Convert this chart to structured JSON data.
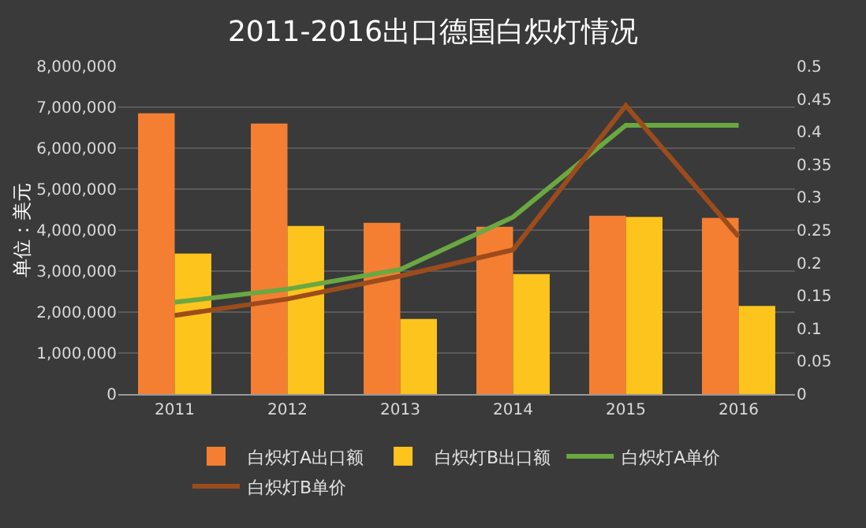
{
  "chart_data": {
    "type": "bar",
    "title": "2011-2016出口德国白炽灯情况",
    "ylabel": "单位：美元",
    "categories": [
      "2011",
      "2012",
      "2013",
      "2014",
      "2015",
      "2016"
    ],
    "series": [
      {
        "name": "白炽灯A出口额",
        "color": "#f47f32",
        "values": [
          6850000,
          6600000,
          4180000,
          4080000,
          4350000,
          4300000
        ]
      },
      {
        "name": "白炽灯B出口额",
        "color": "#fcc41c",
        "values": [
          3430000,
          4100000,
          1830000,
          2930000,
          4320000,
          2150000
        ]
      },
      {
        "name": "白炽灯A单价",
        "type": "line",
        "axis": "y2",
        "color": "#6aa842",
        "values": [
          0.14,
          0.16,
          0.19,
          0.27,
          0.41,
          0.41
        ]
      },
      {
        "name": "白炽灯B单价",
        "type": "line",
        "axis": "y2",
        "color": "#9c4c1c",
        "values": [
          0.12,
          0.145,
          0.18,
          0.22,
          0.44,
          0.24
        ]
      }
    ],
    "ylim": [
      0,
      8000000
    ],
    "yticks": [
      {
        "value": 0,
        "label": "0"
      },
      {
        "value": 1000000,
        "label": "1,000,000"
      },
      {
        "value": 2000000,
        "label": "2,000,000"
      },
      {
        "value": 3000000,
        "label": "3,000,000"
      },
      {
        "value": 4000000,
        "label": "4,000,000"
      },
      {
        "value": 5000000,
        "label": "5,000,000"
      },
      {
        "value": 6000000,
        "label": "6,000,000"
      },
      {
        "value": 7000000,
        "label": "7,000,000"
      },
      {
        "value": 8000000,
        "label": "8,000,000"
      }
    ],
    "y2lim": [
      0,
      0.5
    ],
    "y2ticks": [
      0,
      0.05,
      0.1,
      0.15,
      0.2,
      0.25,
      0.3,
      0.35,
      0.4,
      0.45,
      0.5
    ],
    "grid": "y",
    "legend": "bottom",
    "marker": "none",
    "line_style": "solid"
  }
}
